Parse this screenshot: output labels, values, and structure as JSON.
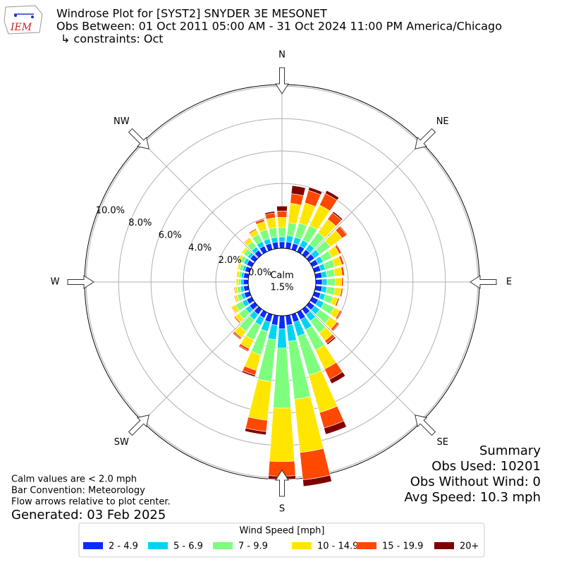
{
  "chart_data": {
    "type": "windrose",
    "title_lines": [
      "Windrose Plot for [SYST2] SNYDER 3E MESONET",
      "Obs Between: 01 Oct 2011 05:00 AM - 31 Oct 2024 11:00 PM America/Chicago",
      "↳ constraints: Oct"
    ],
    "logo_text": "IEM",
    "x": [
      0,
      10,
      20,
      30,
      40,
      50,
      60,
      70,
      80,
      90,
      100,
      110,
      120,
      130,
      140,
      150,
      160,
      170,
      180,
      190,
      200,
      210,
      220,
      230,
      240,
      250,
      260,
      270,
      280,
      290,
      300,
      310,
      320,
      330,
      340,
      350
    ],
    "xticks": [
      {
        "value": 0,
        "label": "N"
      },
      {
        "value": 45,
        "label": "NE"
      },
      {
        "value": 90,
        "label": "E"
      },
      {
        "value": 135,
        "label": "SE"
      },
      {
        "value": 180,
        "label": "S"
      },
      {
        "value": 225,
        "label": "SW"
      },
      {
        "value": 270,
        "label": "W"
      },
      {
        "value": 315,
        "label": "NW"
      }
    ],
    "ylim": [
      0,
      10.1
    ],
    "yticks": [
      {
        "value": 0,
        "label": "0.0%"
      },
      {
        "value": 2,
        "label": "2.0%"
      },
      {
        "value": 4,
        "label": "4.0%"
      },
      {
        "value": 6,
        "label": "6.0%"
      },
      {
        "value": 8,
        "label": "8.0%"
      },
      {
        "value": 10,
        "label": "10.0%"
      }
    ],
    "grid": true,
    "calm_label": "Calm",
    "calm_value": 1.5,
    "calm_value_label": "1.5%",
    "legend_title": "Wind Speed [mph]",
    "series": [
      {
        "name": "2 - 4.9",
        "color": "#0a2cff",
        "values": [
          0.4,
          0.4,
          0.4,
          0.4,
          0.4,
          0.4,
          0.4,
          0.4,
          0.4,
          0.4,
          0.4,
          0.4,
          0.4,
          0.4,
          0.4,
          0.5,
          0.5,
          0.6,
          0.8,
          0.6,
          0.5,
          0.4,
          0.4,
          0.4,
          0.35,
          0.35,
          0.3,
          0.3,
          0.3,
          0.3,
          0.35,
          0.35,
          0.35,
          0.4,
          0.4,
          0.4
        ]
      },
      {
        "name": "5 - 6.9",
        "color": "#00d4f2",
        "values": [
          0.3,
          0.4,
          0.4,
          0.4,
          0.4,
          0.4,
          0.35,
          0.3,
          0.3,
          0.3,
          0.3,
          0.3,
          0.4,
          0.4,
          0.5,
          0.7,
          0.9,
          1.0,
          1.2,
          0.9,
          0.6,
          0.5,
          0.4,
          0.3,
          0.3,
          0.2,
          0.2,
          0.15,
          0.15,
          0.15,
          0.2,
          0.2,
          0.25,
          0.3,
          0.3,
          0.3
        ]
      },
      {
        "name": "7 - 9.9",
        "color": "#7dff7d",
        "values": [
          0.6,
          0.8,
          0.9,
          1.0,
          0.9,
          0.8,
          0.6,
          0.6,
          0.5,
          0.5,
          0.5,
          0.5,
          0.7,
          0.8,
          0.9,
          1.4,
          2.5,
          3.6,
          3.7,
          2.6,
          1.5,
          1.0,
          0.9,
          0.5,
          0.45,
          0.25,
          0.2,
          0.15,
          0.15,
          0.2,
          0.25,
          0.3,
          0.4,
          0.5,
          0.6,
          0.6
        ]
      },
      {
        "name": "10 - 14.9",
        "color": "#ffe600",
        "values": [
          0.6,
          1.2,
          1.3,
          1.4,
          1.0,
          0.9,
          0.5,
          0.45,
          0.45,
          0.4,
          0.4,
          0.3,
          0.4,
          0.5,
          0.6,
          1.3,
          2.4,
          3.3,
          3.3,
          2.4,
          1.0,
          0.6,
          0.45,
          0.3,
          0.25,
          0.15,
          0.15,
          0.15,
          0.15,
          0.15,
          0.15,
          0.15,
          0.25,
          0.3,
          0.5,
          0.6
        ]
      },
      {
        "name": "15 - 19.9",
        "color": "#ff4800",
        "values": [
          0.4,
          0.6,
          0.8,
          0.8,
          0.5,
          0.35,
          0.15,
          0.15,
          0.15,
          0.1,
          0.1,
          0.1,
          0.1,
          0.15,
          0.2,
          0.7,
          1.0,
          1.7,
          0.9,
          0.7,
          0.3,
          0.15,
          0.1,
          0.08,
          0.05,
          0.05,
          0.05,
          0,
          0,
          0,
          0,
          0,
          0.05,
          0.08,
          0.15,
          0.3
        ]
      },
      {
        "name": "20+",
        "color": "#800000",
        "values": [
          0.3,
          0.5,
          0.2,
          0.2,
          0.1,
          0.05,
          0,
          0,
          0,
          0,
          0,
          0,
          0.05,
          0.05,
          0.1,
          0.3,
          0.4,
          0.4,
          0.2,
          0.2,
          0.1,
          0.05,
          0.05,
          0.02,
          0,
          0,
          0,
          0,
          0,
          0,
          0,
          0,
          0,
          0.02,
          0.05,
          0.1
        ]
      }
    ],
    "summary": [
      "Summary",
      "Obs Used: 10201",
      "Obs Without Wind: 0",
      "Avg Speed: 10.3 mph"
    ],
    "notes": [
      "Calm values are < 2.0 mph",
      "Bar Convention: Meteorology",
      "Flow arrows relative to plot center."
    ],
    "generated": "Generated: 03 Feb 2025"
  }
}
